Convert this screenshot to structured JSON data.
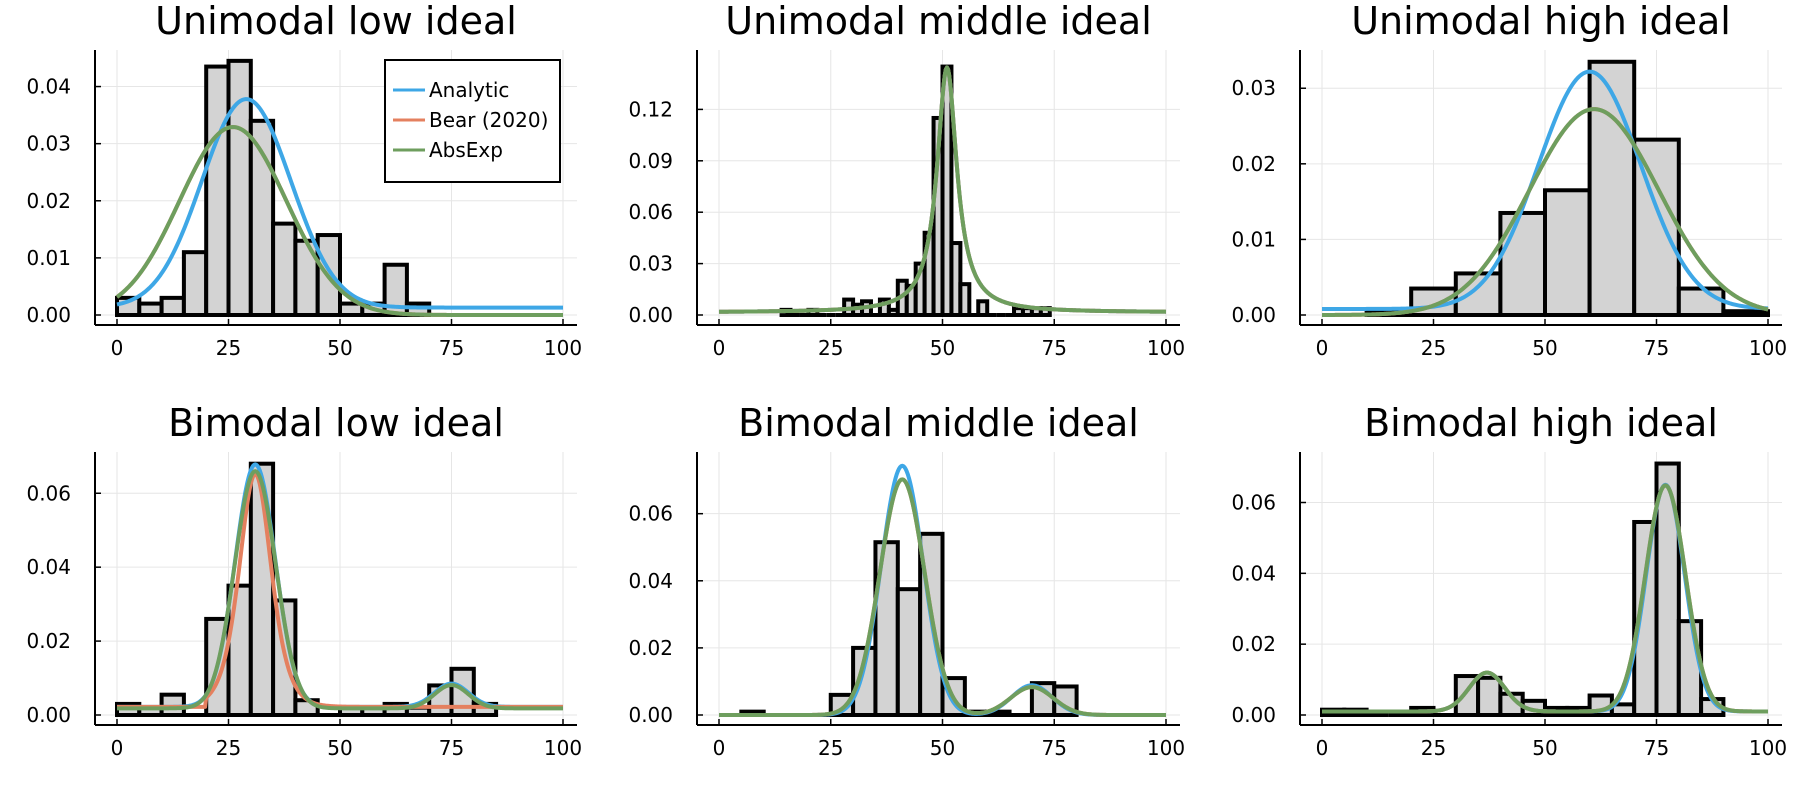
{
  "colors": {
    "analytic": "#3ea7e6",
    "bear": "#e4805f",
    "absexp": "#6e9e5e",
    "bar_fill": "#d3d3d3"
  },
  "legend": {
    "placement": "top-right of first panel",
    "entries": [
      "Analytic",
      "Bear (2020)",
      "AbsExp"
    ]
  },
  "chart_data": [
    {
      "type": "bar",
      "title": "Unimodal low ideal",
      "xlim": [
        0,
        100
      ],
      "ylim": [
        0,
        0.045
      ],
      "xticks": [
        0,
        25,
        50,
        75,
        100
      ],
      "yticks": [
        0.0,
        0.01,
        0.02,
        0.03,
        0.04
      ],
      "yticklabels": [
        "0.00",
        "0.01",
        "0.02",
        "0.03",
        "0.04"
      ],
      "bin_edges": [
        0,
        5,
        10,
        15,
        20,
        25,
        30,
        35,
        40,
        45,
        50,
        55,
        60,
        65,
        70
      ],
      "values": [
        0.003,
        0.002,
        0.003,
        0.011,
        0.0435,
        0.0445,
        0.034,
        0.016,
        0.013,
        0.014,
        0.002,
        0.002,
        0.0088,
        0.002
      ],
      "series": [
        {
          "name": "Analytic",
          "curve": {
            "kind": "normal",
            "mu": 29,
            "sigma": 10,
            "weight": 0.915,
            "floor": 0.0013
          }
        },
        {
          "name": "Bear (2020)",
          "curve": {
            "kind": "normal",
            "mu": 26,
            "sigma": 12,
            "weight": 0.99,
            "floor": 0.0
          }
        },
        {
          "name": "AbsExp",
          "curve": {
            "kind": "normal",
            "mu": 26,
            "sigma": 12,
            "weight": 0.99,
            "floor": 0.0
          }
        }
      ]
    },
    {
      "type": "bar",
      "title": "Unimodal middle ideal",
      "xlim": [
        0,
        100
      ],
      "ylim": [
        0,
        0.15
      ],
      "xticks": [
        0,
        25,
        50,
        75,
        100
      ],
      "yticks": [
        0.0,
        0.03,
        0.06,
        0.09,
        0.12
      ],
      "yticklabels": [
        "0.00",
        "0.03",
        "0.06",
        "0.09",
        "0.12"
      ],
      "bin_edges": [
        14,
        16,
        18,
        20,
        22,
        24,
        26,
        28,
        30,
        32,
        34,
        36,
        38,
        40,
        42,
        44,
        46,
        48,
        50,
        52,
        54,
        56,
        58,
        60,
        62,
        64,
        66,
        68,
        70,
        72,
        74
      ],
      "values": [
        0.003,
        0.0,
        0.0,
        0.003,
        0.0,
        0.0,
        0.0,
        0.009,
        0.006,
        0.008,
        0.0,
        0.009,
        0.003,
        0.02,
        0.017,
        0.03,
        0.048,
        0.115,
        0.145,
        0.042,
        0.018,
        0.0,
        0.008,
        0.0,
        0.0,
        0.0,
        0.004,
        0.004,
        0.004,
        0.004
      ],
      "series": [
        {
          "name": "Analytic",
          "curve": {
            "kind": "cauchy",
            "mu": 51,
            "gamma": 2.7,
            "peak": 0.143,
            "floor": 0.0015
          }
        },
        {
          "name": "Bear (2020)",
          "curve": {
            "kind": "cauchy",
            "mu": 51,
            "gamma": 2.7,
            "peak": 0.143,
            "floor": 0.0015
          }
        },
        {
          "name": "AbsExp",
          "curve": {
            "kind": "cauchy",
            "mu": 51,
            "gamma": 2.7,
            "peak": 0.143,
            "floor": 0.0015
          }
        }
      ]
    },
    {
      "type": "bar",
      "title": "Unimodal high ideal",
      "xlim": [
        0,
        100
      ],
      "ylim": [
        0,
        0.034
      ],
      "xticks": [
        0,
        25,
        50,
        75,
        100
      ],
      "yticks": [
        0.0,
        0.01,
        0.02,
        0.03
      ],
      "yticklabels": [
        "0.00",
        "0.01",
        "0.02",
        "0.03"
      ],
      "bin_edges": [
        10,
        20,
        30,
        40,
        50,
        60,
        70,
        80,
        90,
        100
      ],
      "values": [
        0.0005,
        0.0035,
        0.0055,
        0.0135,
        0.0165,
        0.0335,
        0.0232,
        0.0035,
        0.0005
      ],
      "series": [
        {
          "name": "Analytic",
          "curve": {
            "kind": "normal",
            "mu": 60,
            "sigma": 11.5,
            "weight": 0.905,
            "floor": 0.0008
          }
        },
        {
          "name": "Bear (2020)",
          "curve": {
            "kind": "normal",
            "mu": 61,
            "sigma": 14.5,
            "weight": 0.99,
            "floor": 0.0
          }
        },
        {
          "name": "AbsExp",
          "curve": {
            "kind": "normal",
            "mu": 61,
            "sigma": 14.5,
            "weight": 0.99,
            "floor": 0.0
          }
        }
      ]
    },
    {
      "type": "bar",
      "title": "Bimodal low ideal",
      "xlim": [
        0,
        100
      ],
      "ylim": [
        0,
        0.069
      ],
      "xticks": [
        0,
        25,
        50,
        75,
        100
      ],
      "yticks": [
        0.0,
        0.02,
        0.04,
        0.06
      ],
      "yticklabels": [
        "0.00",
        "0.02",
        "0.04",
        "0.06"
      ],
      "bin_edges": [
        0,
        5,
        10,
        15,
        20,
        25,
        30,
        35,
        40,
        45,
        50,
        55,
        60,
        65,
        70,
        75,
        80,
        85
      ],
      "values": [
        0.003,
        0.002,
        0.0055,
        0.0,
        0.026,
        0.035,
        0.068,
        0.031,
        0.004,
        0.0,
        0.002,
        0.002,
        0.003,
        0.002,
        0.008,
        0.0125,
        0.003
      ],
      "series": [
        {
          "name": "Analytic",
          "curve": {
            "kind": "normal",
            "mu": 31,
            "sigma": 4.5,
            "weight": 0.74,
            "mu2": 75,
            "sigma2": 3.8,
            "weight2": 0.06,
            "floor": 0.0022
          }
        },
        {
          "name": "Bear (2020)",
          "curve": {
            "kind": "logistic",
            "mu": 31,
            "s": 2.4,
            "peak": 0.063,
            "floor": 0.0022,
            "step_at": 20
          }
        },
        {
          "name": "AbsExp",
          "curve": {
            "kind": "normal",
            "mu": 31,
            "sigma": 4.6,
            "weight": 0.74,
            "mu2": 75,
            "sigma2": 3.8,
            "weight2": 0.06,
            "floor": 0.0018
          }
        }
      ]
    },
    {
      "type": "bar",
      "title": "Bimodal middle ideal",
      "xlim": [
        0,
        100
      ],
      "ylim": [
        0,
        0.076
      ],
      "xticks": [
        0,
        25,
        50,
        75,
        100
      ],
      "yticks": [
        0.0,
        0.02,
        0.04,
        0.06
      ],
      "yticklabels": [
        "0.00",
        "0.02",
        "0.04",
        "0.06"
      ],
      "bin_edges": [
        5,
        10,
        15,
        20,
        25,
        30,
        35,
        40,
        45,
        50,
        55,
        60,
        65,
        70,
        75,
        80
      ],
      "values": [
        0.001,
        0.0,
        0.0,
        0.0,
        0.006,
        0.02,
        0.0515,
        0.0375,
        0.054,
        0.011,
        0.001,
        0.001,
        0.0,
        0.0095,
        0.0085
      ],
      "series": [
        {
          "name": "Analytic",
          "curve": {
            "kind": "normal",
            "mu": 41,
            "sigma": 4.7,
            "weight": 0.875,
            "mu2": 70,
            "sigma2": 4.5,
            "weight2": 0.1,
            "floor": 0.0
          }
        },
        {
          "name": "Bear (2020)",
          "curve": {
            "kind": "normal",
            "mu": 41,
            "sigma": 5.0,
            "weight": 0.88,
            "mu2": 70,
            "sigma2": 4.8,
            "weight2": 0.1,
            "floor": 0.0
          }
        },
        {
          "name": "AbsExp",
          "curve": {
            "kind": "normal",
            "mu": 41,
            "sigma": 5.0,
            "weight": 0.88,
            "mu2": 70,
            "sigma2": 4.8,
            "weight2": 0.1,
            "floor": 0.0
          }
        }
      ]
    },
    {
      "type": "bar",
      "title": "Bimodal high ideal",
      "xlim": [
        0,
        100
      ],
      "ylim": [
        0,
        0.072
      ],
      "xticks": [
        0,
        25,
        50,
        75,
        100
      ],
      "yticks": [
        0.0,
        0.02,
        0.04,
        0.06
      ],
      "yticklabels": [
        "0.00",
        "0.02",
        "0.04",
        "0.06"
      ],
      "bin_edges": [
        0,
        5,
        10,
        15,
        20,
        25,
        30,
        35,
        40,
        45,
        50,
        55,
        60,
        65,
        70,
        75,
        80,
        85,
        90
      ],
      "values": [
        0.0015,
        0.0015,
        0.0,
        0.0,
        0.002,
        0.0,
        0.011,
        0.0105,
        0.006,
        0.004,
        0.002,
        0.002,
        0.0055,
        0.003,
        0.0545,
        0.071,
        0.0265,
        0.0045
      ],
      "series": [
        {
          "name": "Analytic",
          "curve": {
            "kind": "normal",
            "mu": 77,
            "sigma": 4.3,
            "weight": 0.69,
            "mu2": 37,
            "sigma2": 4.0,
            "weight2": 0.11,
            "floor": 0.001
          }
        },
        {
          "name": "Bear (2020)",
          "curve": {
            "kind": "normal",
            "mu": 77,
            "sigma": 4.5,
            "weight": 0.72,
            "mu2": 37,
            "sigma2": 4.0,
            "weight2": 0.11,
            "floor": 0.001
          }
        },
        {
          "name": "AbsExp",
          "curve": {
            "kind": "normal",
            "mu": 77,
            "sigma": 4.5,
            "weight": 0.72,
            "mu2": 37,
            "sigma2": 4.0,
            "weight2": 0.11,
            "floor": 0.001
          }
        }
      ]
    }
  ]
}
